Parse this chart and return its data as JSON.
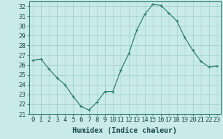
{
  "x": [
    0,
    1,
    2,
    3,
    4,
    5,
    6,
    7,
    8,
    9,
    10,
    11,
    12,
    13,
    14,
    15,
    16,
    17,
    18,
    19,
    20,
    21,
    22,
    23
  ],
  "y": [
    26.5,
    26.6,
    25.6,
    24.7,
    24.0,
    22.8,
    21.8,
    21.4,
    22.2,
    23.3,
    23.3,
    25.5,
    27.2,
    29.6,
    31.2,
    32.2,
    32.1,
    31.3,
    30.5,
    28.8,
    27.5,
    26.4,
    25.8,
    25.9
  ],
  "line_color": "#2e7d6e",
  "marker": "+",
  "bg_color": "#c8eae8",
  "grid_color": "#9ecece",
  "xlabel": "Humidex (Indice chaleur)",
  "ylim": [
    21,
    32.5
  ],
  "xlim": [
    -0.5,
    23.5
  ],
  "yticks": [
    21,
    22,
    23,
    24,
    25,
    26,
    27,
    28,
    29,
    30,
    31,
    32
  ],
  "xticks": [
    0,
    1,
    2,
    3,
    4,
    5,
    6,
    7,
    8,
    9,
    10,
    11,
    12,
    13,
    14,
    15,
    16,
    17,
    18,
    19,
    20,
    21,
    22,
    23
  ],
  "xlabel_fontsize": 7.5,
  "tick_fontsize": 6.5
}
